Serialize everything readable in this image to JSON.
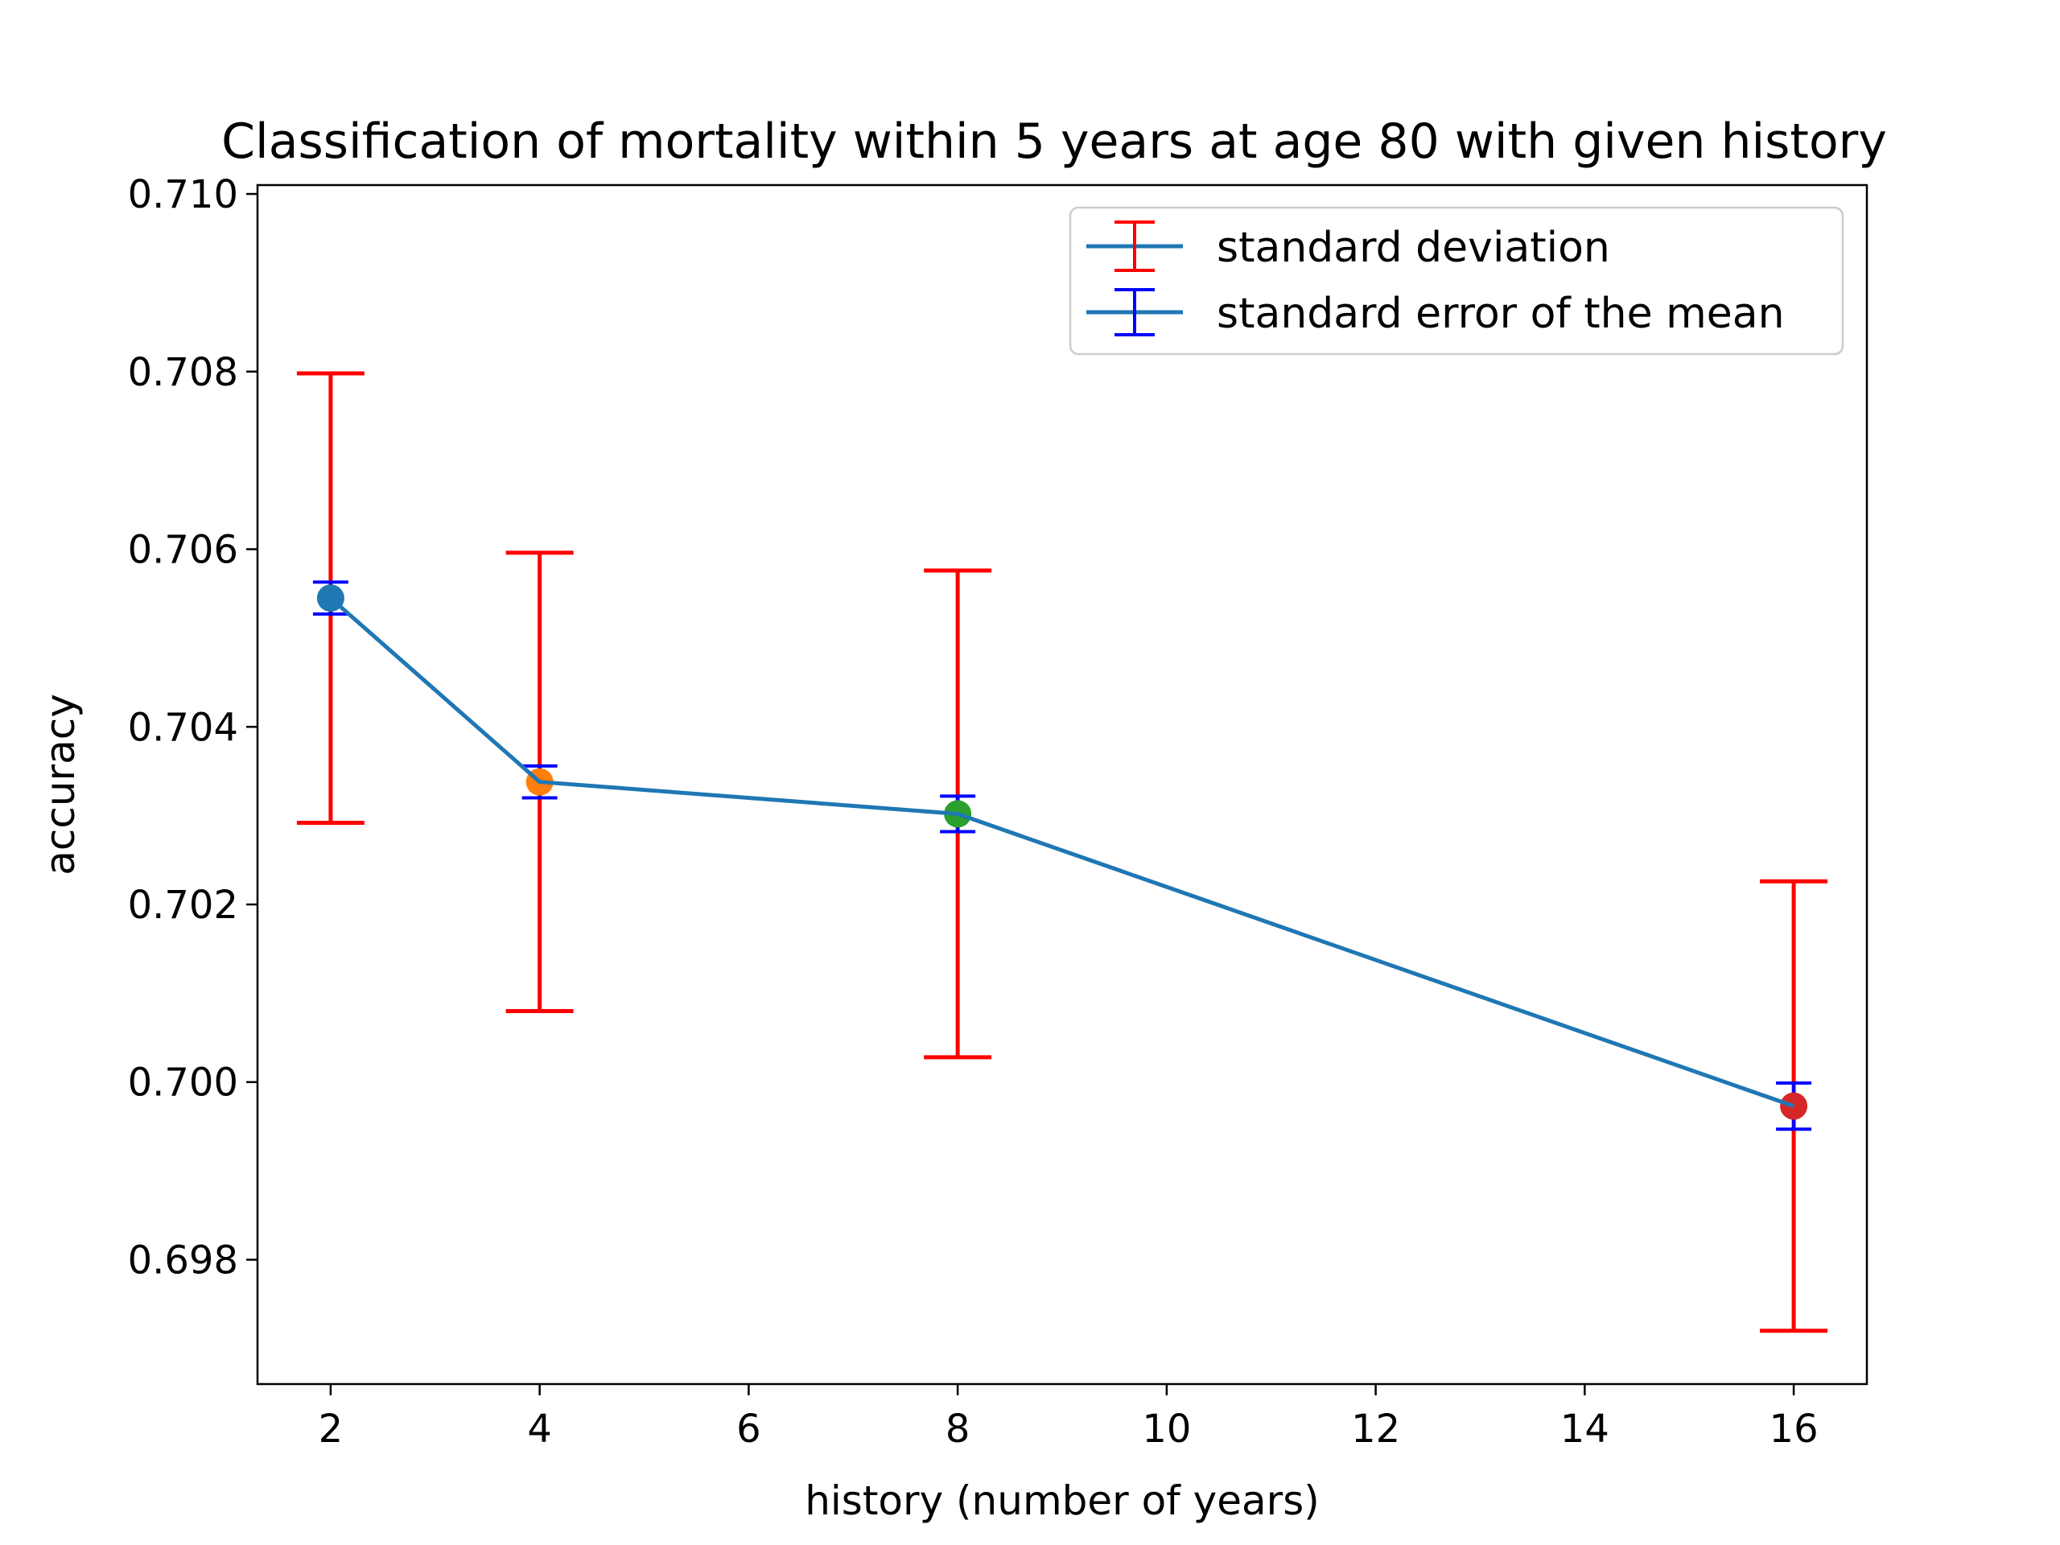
{
  "chart_data": {
    "type": "line",
    "title": "Classification of mortality within 5 years at age 80 with given history",
    "xlabel": "history (number of years)",
    "ylabel": "accuracy",
    "xlim": [
      1.3,
      16.7
    ],
    "ylim": [
      0.6966,
      0.7101
    ],
    "x_ticks": [
      2,
      4,
      6,
      8,
      10,
      12,
      14,
      16
    ],
    "x_tick_labels": [
      "2",
      "4",
      "6",
      "8",
      "10",
      "12",
      "14",
      "16"
    ],
    "y_ticks": [
      0.698,
      0.7,
      0.702,
      0.704,
      0.706,
      0.708,
      0.71
    ],
    "y_tick_labels": [
      "0.698",
      "0.700",
      "0.702",
      "0.704",
      "0.706",
      "0.708",
      "0.710"
    ],
    "grid": false,
    "legend_position": "top-right",
    "series": [
      {
        "name": "accuracy",
        "color": "#1f77b4",
        "x": [
          2,
          4,
          8,
          16
        ],
        "y": [
          0.70545,
          0.70338,
          0.70302,
          0.69973
        ],
        "point_colors": [
          "#1f77b4",
          "#ff7f0e",
          "#2ca02c",
          "#d62728"
        ]
      }
    ],
    "error_bars": [
      {
        "name": "standard deviation",
        "color": "#ff0000",
        "line_color": "#1f77b4",
        "errors": [
          0.00253,
          0.00258,
          0.00274,
          0.00253
        ]
      },
      {
        "name": "standard error of the mean",
        "color": "#0000ff",
        "line_color": "#1f77b4",
        "errors": [
          0.00018,
          0.00018,
          0.0002,
          0.00026
        ]
      }
    ]
  }
}
